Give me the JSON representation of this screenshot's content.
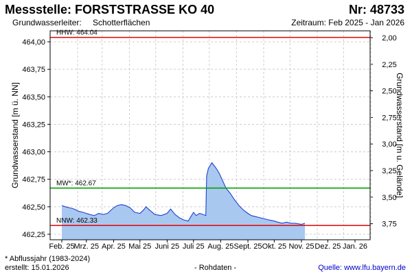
{
  "header": {
    "title": "Messstelle: FORSTSTRASSE KO 40",
    "number": "Nr: 48733",
    "aquifer_label": "Grundwasserleiter:",
    "aquifer_value": "Schotterflächen",
    "period": "Zeitraum: Feb 2025 - Jan 2026"
  },
  "footer": {
    "note": "* Abflussjahr (1983-2024)",
    "created": "erstellt:  15.01.2026",
    "raw": "- Rohdaten -",
    "source": "Quelle:  www.lfu.bayern.de"
  },
  "chart_data": {
    "type": "area",
    "ylabel": "Grundwasserstand [m ü. NN]",
    "ylabel_right": "Grundwasserstand [m u. Gelände]",
    "xlabel": "",
    "ylim": [
      462.2,
      464.1
    ],
    "y_ticks": [
      464.0,
      463.75,
      463.5,
      463.25,
      463.0,
      462.75,
      462.5,
      462.25
    ],
    "y_tick_labels": [
      "464,00",
      "463,75",
      "463,50",
      "463,25",
      "463,00",
      "462,75",
      "462,50",
      "462,25"
    ],
    "y2_ticks": [
      2.0,
      2.25,
      2.5,
      2.75,
      3.0,
      3.25,
      3.5,
      3.75
    ],
    "y2_tick_labels": [
      "2,00",
      "2,25",
      "2,50",
      "2,75",
      "3,00",
      "3,25",
      "3,50",
      "3,75"
    ],
    "x_tick_labels": [
      "Feb. 25",
      "Mrz. 25",
      "Apr. 25",
      "Mai 25",
      "Juni 25",
      "Juli 25",
      "Aug. 25",
      "Sept. 25",
      "Okt. 25",
      "Nov. 25",
      "Dez. 25",
      "Jan. 26"
    ],
    "grid": true,
    "colors": {
      "fill": "#a9c8f0",
      "line": "#1f3fd0",
      "hhw": "#e00000",
      "mw": "#00a000",
      "nnw": "#e00000",
      "grid": "#cccccc"
    },
    "reference_lines": [
      {
        "name": "HHW",
        "label": "HHW: 464.04",
        "value": 464.04
      },
      {
        "name": "MW",
        "label": "MW*: 462.67",
        "value": 462.67
      },
      {
        "name": "NNW",
        "label": "NNW: 462.33",
        "value": 462.33
      }
    ],
    "series": [
      {
        "x": [
          "2025-02-01",
          "2025-02-05",
          "2025-02-10",
          "2025-02-15",
          "2025-02-20",
          "2025-02-25",
          "2025-03-01",
          "2025-03-05",
          "2025-03-10",
          "2025-03-15",
          "2025-03-20",
          "2025-03-25",
          "2025-04-01",
          "2025-04-05",
          "2025-04-10",
          "2025-04-15",
          "2025-04-20",
          "2025-04-25",
          "2025-05-01",
          "2025-05-05",
          "2025-05-08",
          "2025-05-12",
          "2025-05-18",
          "2025-05-25",
          "2025-06-01",
          "2025-06-05",
          "2025-06-10",
          "2025-06-15",
          "2025-06-20",
          "2025-06-25",
          "2025-06-28",
          "2025-07-01",
          "2025-07-04",
          "2025-07-08",
          "2025-07-12",
          "2025-07-15",
          "2025-07-16",
          "2025-07-18",
          "2025-07-22",
          "2025-07-26",
          "2025-07-30",
          "2025-08-03",
          "2025-08-07",
          "2025-08-12",
          "2025-08-17",
          "2025-08-22",
          "2025-08-27",
          "2025-09-01",
          "2025-09-05",
          "2025-09-10",
          "2025-09-15",
          "2025-09-20",
          "2025-09-25",
          "2025-10-01",
          "2025-10-05",
          "2025-10-10",
          "2025-10-15",
          "2025-10-20",
          "2025-10-25",
          "2025-11-01",
          "2025-11-05"
        ],
        "values": [
          462.51,
          462.5,
          462.49,
          462.48,
          462.46,
          462.45,
          462.44,
          462.43,
          462.42,
          462.44,
          462.43,
          462.44,
          462.49,
          462.51,
          462.52,
          462.51,
          462.49,
          462.45,
          462.44,
          462.47,
          462.5,
          462.47,
          462.43,
          462.42,
          462.44,
          462.48,
          462.43,
          462.4,
          462.38,
          462.37,
          462.41,
          462.45,
          462.42,
          462.44,
          462.43,
          462.42,
          462.78,
          462.85,
          462.9,
          462.86,
          462.81,
          462.74,
          462.67,
          462.62,
          462.56,
          462.51,
          462.47,
          462.44,
          462.42,
          462.41,
          462.4,
          462.39,
          462.38,
          462.37,
          462.36,
          462.35,
          462.36,
          462.35,
          462.35,
          462.34,
          462.35
        ]
      }
    ]
  }
}
